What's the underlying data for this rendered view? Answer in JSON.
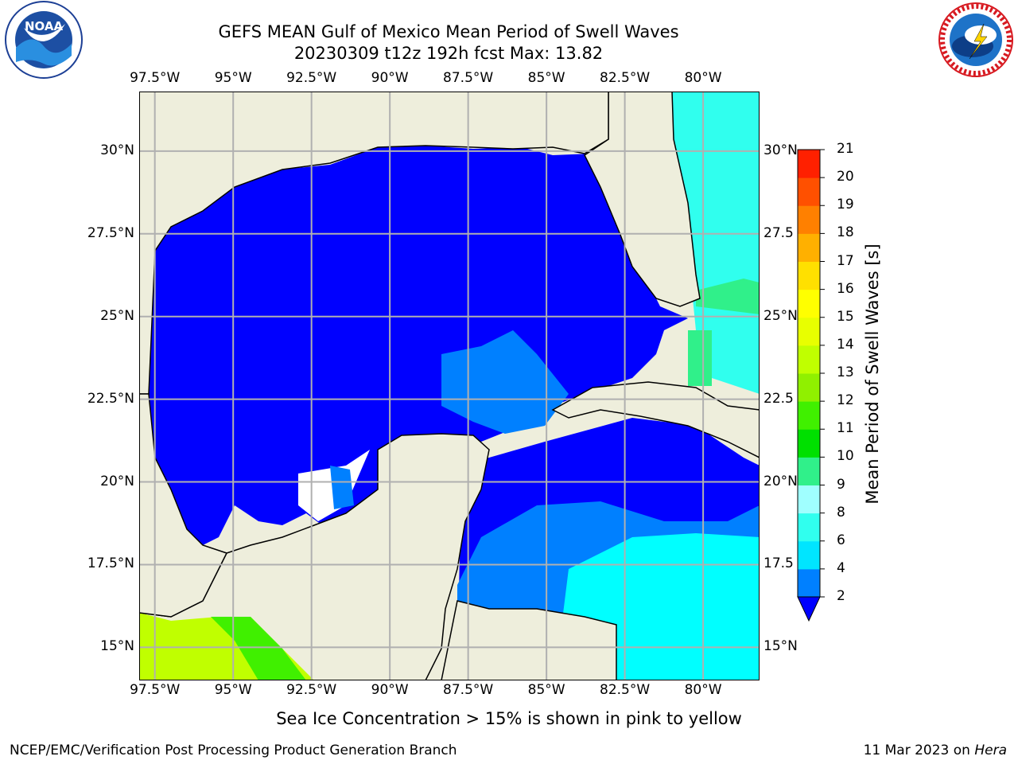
{
  "header": {
    "title_line1": "GEFS MEAN Gulf of Mexico Mean Period of Swell Waves",
    "title_line2": "20230309 t12z 192h fcst   Max: 13.82"
  },
  "logos": {
    "left": {
      "text": "NOAA",
      "ring_text": "NATIONAL OCEANIC AND ATMOSPHERIC ADMINISTRATION · U.S. DEPARTMENT OF COMMERCE"
    },
    "right": {
      "ring_text": "NATIONAL WEATHER SERVICE"
    }
  },
  "axes": {
    "lon_labels": [
      "97.5°W",
      "95°W",
      "92.5°W",
      "90°W",
      "87.5°W",
      "85°W",
      "82.5°W",
      "80°W"
    ],
    "lat_labels_left": [
      "30°N",
      "27.5°N",
      "25°N",
      "22.5°N",
      "20°N",
      "17.5°N",
      "15°N"
    ],
    "lat_labels_right": [
      "30°N",
      "27.5",
      "25°N",
      "22.5",
      "20°N",
      "17.5",
      "15°N"
    ]
  },
  "map": {
    "extent": {
      "lon": [
        -98,
        -78.2
      ],
      "lat": [
        14,
        31.8
      ]
    },
    "colors": {
      "land": "#eeeedc",
      "coast": "#000000",
      "grid": "#b0b0b0"
    }
  },
  "colorbar": {
    "label": "Mean Period of Swell Waves [s]",
    "ticks": [
      "2",
      "4",
      "6",
      "8",
      "9",
      "10",
      "11",
      "12",
      "13",
      "14",
      "15",
      "16",
      "17",
      "18",
      "19",
      "20",
      "21"
    ],
    "colors": [
      "#0000ff",
      "#0080ff",
      "#00e5ff",
      "#30ffee",
      "#a0ffff",
      "#30f08a",
      "#00e000",
      "#40f000",
      "#90f000",
      "#c0ff00",
      "#e8ff00",
      "#ffff00",
      "#ffe000",
      "#ffb000",
      "#ff8000",
      "#ff5000",
      "#ff2000",
      "#ff0000"
    ]
  },
  "caption": "Sea Ice Concentration > 15% is shown in pink to yellow",
  "footer": {
    "left": "NCEP/EMC/Verification Post Processing Product Generation Branch",
    "right_prefix": "11 Mar 2023 on ",
    "right_host": "Hera"
  }
}
